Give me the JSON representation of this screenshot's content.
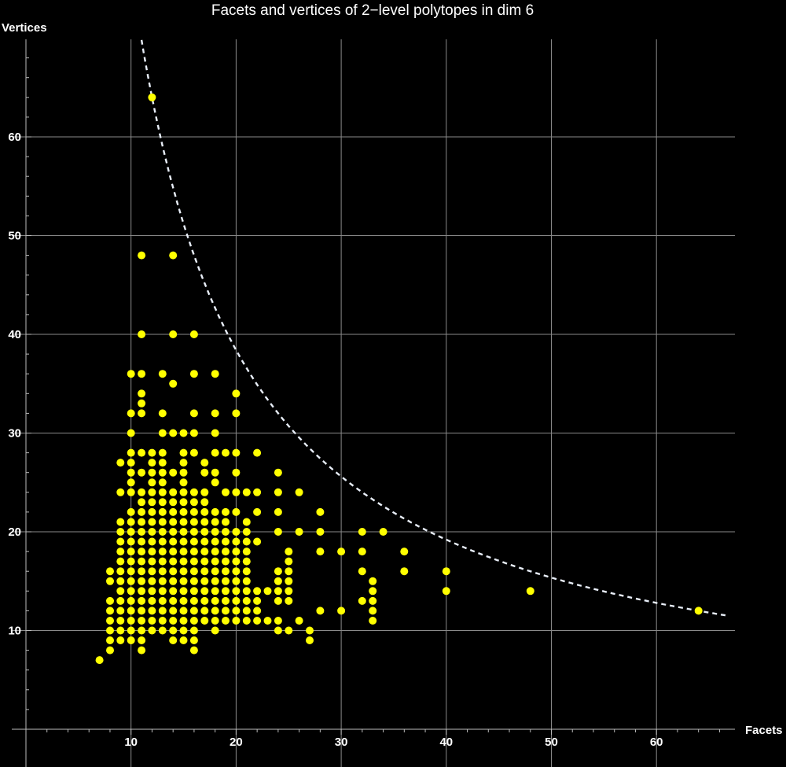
{
  "chart_data": {
    "type": "scatter",
    "title": "Facets and vertices of 2−level polytopes in dim 6",
    "xlabel": "Facets",
    "ylabel": "Vertices",
    "xlim": [
      -1,
      67
    ],
    "ylim": [
      0,
      70
    ],
    "xticks": [
      10,
      20,
      30,
      40,
      50,
      60
    ],
    "yticks": [
      10,
      20,
      30,
      40,
      50,
      60
    ],
    "grid": true,
    "point_color": "#FFFF00",
    "curve_color": "#E8EEF8",
    "background": "#000000",
    "curve": {
      "label": "",
      "style": "dashed",
      "formula": "y = 768/x"
    },
    "series": [
      {
        "points": [
          [
            7,
            7
          ],
          [
            8,
            8
          ],
          [
            8,
            9
          ],
          [
            8,
            10
          ],
          [
            8,
            11
          ],
          [
            8,
            12
          ],
          [
            8,
            13
          ],
          [
            8,
            15
          ],
          [
            8,
            16
          ],
          [
            9,
            9
          ],
          [
            9,
            10
          ],
          [
            9,
            11
          ],
          [
            9,
            12
          ],
          [
            9,
            13
          ],
          [
            9,
            14
          ],
          [
            9,
            15
          ],
          [
            9,
            16
          ],
          [
            9,
            17
          ],
          [
            9,
            18
          ],
          [
            9,
            19
          ],
          [
            9,
            20
          ],
          [
            9,
            21
          ],
          [
            9,
            24
          ],
          [
            9,
            27
          ],
          [
            10,
            9
          ],
          [
            10,
            10
          ],
          [
            10,
            11
          ],
          [
            10,
            12
          ],
          [
            10,
            13
          ],
          [
            10,
            14
          ],
          [
            10,
            15
          ],
          [
            10,
            16
          ],
          [
            10,
            17
          ],
          [
            10,
            18
          ],
          [
            10,
            19
          ],
          [
            10,
            20
          ],
          [
            10,
            21
          ],
          [
            10,
            22
          ],
          [
            10,
            24
          ],
          [
            10,
            25
          ],
          [
            10,
            26
          ],
          [
            10,
            27
          ],
          [
            10,
            28
          ],
          [
            10,
            30
          ],
          [
            10,
            32
          ],
          [
            10,
            36
          ],
          [
            11,
            8
          ],
          [
            11,
            9
          ],
          [
            11,
            10
          ],
          [
            11,
            11
          ],
          [
            11,
            12
          ],
          [
            11,
            13
          ],
          [
            11,
            14
          ],
          [
            11,
            15
          ],
          [
            11,
            16
          ],
          [
            11,
            17
          ],
          [
            11,
            18
          ],
          [
            11,
            19
          ],
          [
            11,
            20
          ],
          [
            11,
            21
          ],
          [
            11,
            22
          ],
          [
            11,
            23
          ],
          [
            11,
            24
          ],
          [
            11,
            26
          ],
          [
            11,
            28
          ],
          [
            11,
            32
          ],
          [
            11,
            33
          ],
          [
            11,
            34
          ],
          [
            11,
            36
          ],
          [
            11,
            40
          ],
          [
            11,
            48
          ],
          [
            12,
            10
          ],
          [
            12,
            11
          ],
          [
            12,
            12
          ],
          [
            12,
            13
          ],
          [
            12,
            14
          ],
          [
            12,
            15
          ],
          [
            12,
            16
          ],
          [
            12,
            17
          ],
          [
            12,
            18
          ],
          [
            12,
            19
          ],
          [
            12,
            20
          ],
          [
            12,
            21
          ],
          [
            12,
            22
          ],
          [
            12,
            23
          ],
          [
            12,
            24
          ],
          [
            12,
            25
          ],
          [
            12,
            26
          ],
          [
            12,
            27
          ],
          [
            12,
            28
          ],
          [
            12,
            64
          ],
          [
            13,
            10
          ],
          [
            13,
            11
          ],
          [
            13,
            12
          ],
          [
            13,
            13
          ],
          [
            13,
            14
          ],
          [
            13,
            15
          ],
          [
            13,
            16
          ],
          [
            13,
            17
          ],
          [
            13,
            18
          ],
          [
            13,
            19
          ],
          [
            13,
            20
          ],
          [
            13,
            21
          ],
          [
            13,
            22
          ],
          [
            13,
            23
          ],
          [
            13,
            24
          ],
          [
            13,
            25
          ],
          [
            13,
            26
          ],
          [
            13,
            27
          ],
          [
            13,
            28
          ],
          [
            13,
            30
          ],
          [
            13,
            32
          ],
          [
            13,
            36
          ],
          [
            14,
            9
          ],
          [
            14,
            10
          ],
          [
            14,
            11
          ],
          [
            14,
            12
          ],
          [
            14,
            13
          ],
          [
            14,
            14
          ],
          [
            14,
            15
          ],
          [
            14,
            16
          ],
          [
            14,
            17
          ],
          [
            14,
            18
          ],
          [
            14,
            19
          ],
          [
            14,
            20
          ],
          [
            14,
            21
          ],
          [
            14,
            22
          ],
          [
            14,
            23
          ],
          [
            14,
            24
          ],
          [
            14,
            26
          ],
          [
            14,
            30
          ],
          [
            14,
            35
          ],
          [
            14,
            40
          ],
          [
            14,
            48
          ],
          [
            15,
            9
          ],
          [
            15,
            10
          ],
          [
            15,
            11
          ],
          [
            15,
            12
          ],
          [
            15,
            13
          ],
          [
            15,
            14
          ],
          [
            15,
            15
          ],
          [
            15,
            16
          ],
          [
            15,
            17
          ],
          [
            15,
            18
          ],
          [
            15,
            19
          ],
          [
            15,
            20
          ],
          [
            15,
            21
          ],
          [
            15,
            22
          ],
          [
            15,
            23
          ],
          [
            15,
            24
          ],
          [
            15,
            25
          ],
          [
            15,
            26
          ],
          [
            15,
            27
          ],
          [
            15,
            28
          ],
          [
            15,
            30
          ],
          [
            16,
            8
          ],
          [
            16,
            9
          ],
          [
            16,
            10
          ],
          [
            16,
            11
          ],
          [
            16,
            12
          ],
          [
            16,
            13
          ],
          [
            16,
            14
          ],
          [
            16,
            15
          ],
          [
            16,
            16
          ],
          [
            16,
            17
          ],
          [
            16,
            18
          ],
          [
            16,
            19
          ],
          [
            16,
            20
          ],
          [
            16,
            21
          ],
          [
            16,
            22
          ],
          [
            16,
            23
          ],
          [
            16,
            24
          ],
          [
            16,
            28
          ],
          [
            16,
            30
          ],
          [
            16,
            32
          ],
          [
            16,
            36
          ],
          [
            16,
            40
          ],
          [
            17,
            11
          ],
          [
            17,
            12
          ],
          [
            17,
            13
          ],
          [
            17,
            14
          ],
          [
            17,
            15
          ],
          [
            17,
            16
          ],
          [
            17,
            17
          ],
          [
            17,
            18
          ],
          [
            17,
            19
          ],
          [
            17,
            20
          ],
          [
            17,
            21
          ],
          [
            17,
            22
          ],
          [
            17,
            23
          ],
          [
            17,
            24
          ],
          [
            17,
            26
          ],
          [
            17,
            27
          ],
          [
            18,
            10
          ],
          [
            18,
            11
          ],
          [
            18,
            12
          ],
          [
            18,
            13
          ],
          [
            18,
            14
          ],
          [
            18,
            15
          ],
          [
            18,
            16
          ],
          [
            18,
            17
          ],
          [
            18,
            18
          ],
          [
            18,
            19
          ],
          [
            18,
            20
          ],
          [
            18,
            21
          ],
          [
            18,
            22
          ],
          [
            18,
            25
          ],
          [
            18,
            26
          ],
          [
            18,
            28
          ],
          [
            18,
            30
          ],
          [
            18,
            32
          ],
          [
            18,
            36
          ],
          [
            19,
            11
          ],
          [
            19,
            12
          ],
          [
            19,
            13
          ],
          [
            19,
            14
          ],
          [
            19,
            15
          ],
          [
            19,
            16
          ],
          [
            19,
            17
          ],
          [
            19,
            18
          ],
          [
            19,
            19
          ],
          [
            19,
            20
          ],
          [
            19,
            21
          ],
          [
            19,
            22
          ],
          [
            19,
            24
          ],
          [
            19,
            28
          ],
          [
            20,
            11
          ],
          [
            20,
            12
          ],
          [
            20,
            13
          ],
          [
            20,
            14
          ],
          [
            20,
            15
          ],
          [
            20,
            16
          ],
          [
            20,
            17
          ],
          [
            20,
            18
          ],
          [
            20,
            19
          ],
          [
            20,
            20
          ],
          [
            20,
            22
          ],
          [
            20,
            24
          ],
          [
            20,
            26
          ],
          [
            20,
            28
          ],
          [
            20,
            32
          ],
          [
            20,
            34
          ],
          [
            21,
            11
          ],
          [
            21,
            12
          ],
          [
            21,
            13
          ],
          [
            21,
            14
          ],
          [
            21,
            15
          ],
          [
            21,
            16
          ],
          [
            21,
            17
          ],
          [
            21,
            18
          ],
          [
            21,
            19
          ],
          [
            21,
            20
          ],
          [
            21,
            21
          ],
          [
            21,
            24
          ],
          [
            22,
            11
          ],
          [
            22,
            12
          ],
          [
            22,
            13
          ],
          [
            22,
            14
          ],
          [
            22,
            19
          ],
          [
            22,
            22
          ],
          [
            22,
            24
          ],
          [
            22,
            28
          ],
          [
            23,
            11
          ],
          [
            23,
            14
          ],
          [
            24,
            10
          ],
          [
            24,
            11
          ],
          [
            24,
            13
          ],
          [
            24,
            14
          ],
          [
            24,
            15
          ],
          [
            24,
            16
          ],
          [
            24,
            20
          ],
          [
            24,
            22
          ],
          [
            24,
            24
          ],
          [
            24,
            26
          ],
          [
            25,
            10
          ],
          [
            25,
            13
          ],
          [
            25,
            14
          ],
          [
            25,
            15
          ],
          [
            25,
            16
          ],
          [
            25,
            17
          ],
          [
            25,
            18
          ],
          [
            26,
            11
          ],
          [
            26,
            20
          ],
          [
            26,
            24
          ],
          [
            27,
            9
          ],
          [
            27,
            10
          ],
          [
            28,
            12
          ],
          [
            28,
            18
          ],
          [
            28,
            20
          ],
          [
            28,
            22
          ],
          [
            30,
            12
          ],
          [
            30,
            18
          ],
          [
            32,
            13
          ],
          [
            32,
            16
          ],
          [
            32,
            18
          ],
          [
            32,
            20
          ],
          [
            33,
            11
          ],
          [
            33,
            12
          ],
          [
            33,
            13
          ],
          [
            33,
            14
          ],
          [
            33,
            15
          ],
          [
            34,
            20
          ],
          [
            36,
            16
          ],
          [
            36,
            18
          ],
          [
            40,
            14
          ],
          [
            40,
            16
          ],
          [
            48,
            14
          ],
          [
            64,
            12
          ]
        ]
      }
    ]
  }
}
